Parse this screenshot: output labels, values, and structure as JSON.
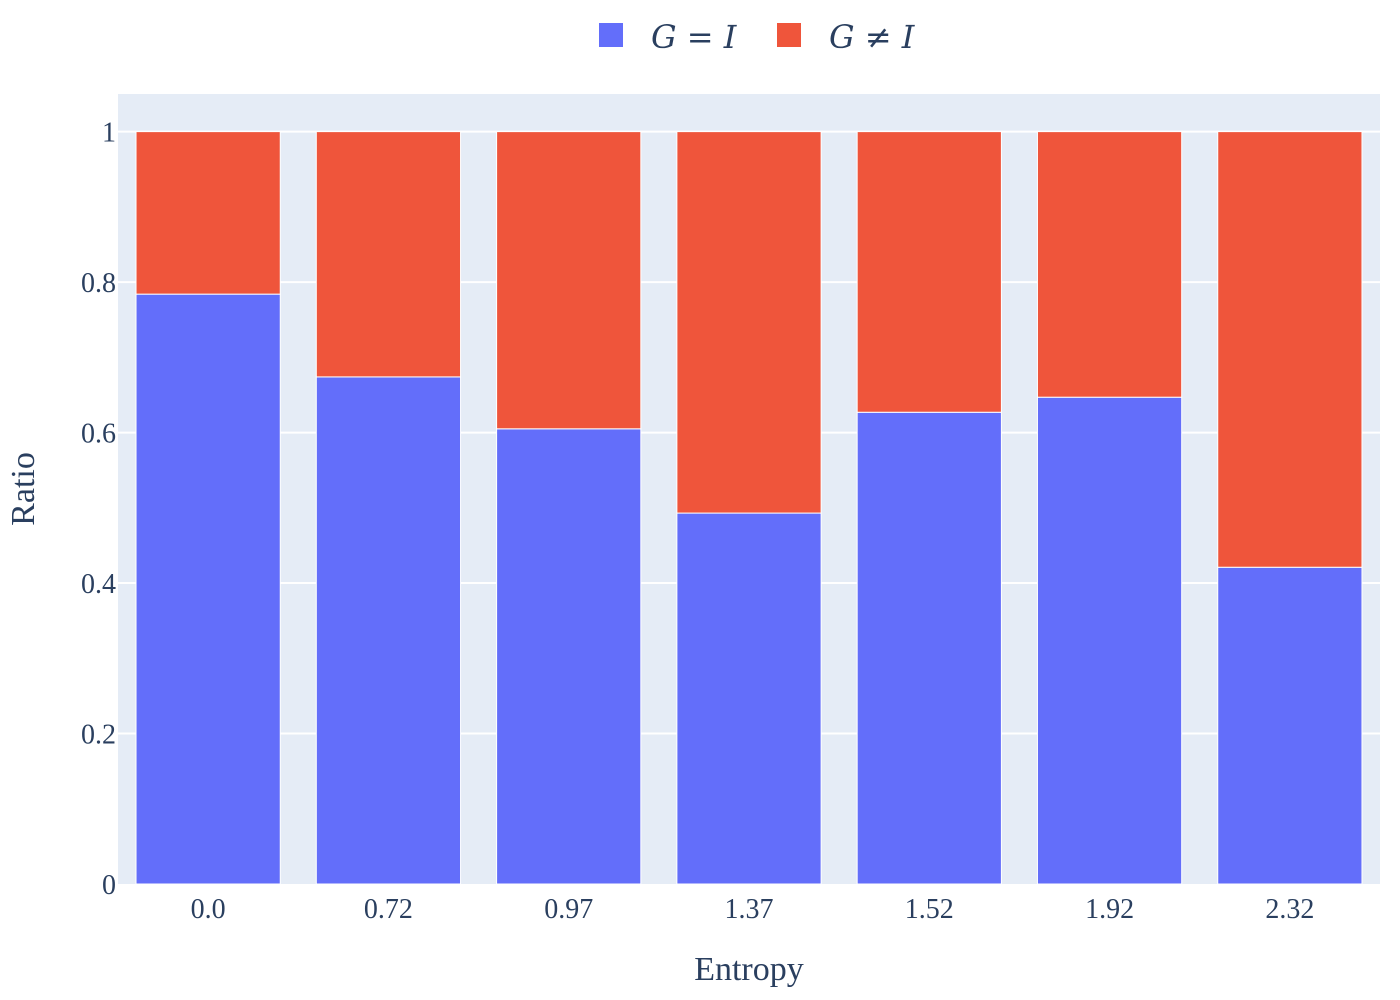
{
  "chart_data": {
    "type": "bar",
    "stacked": true,
    "categories": [
      "0.0",
      "0.72",
      "0.97",
      "1.37",
      "1.52",
      "1.92",
      "2.32"
    ],
    "series": [
      {
        "name": "G = I",
        "values": [
          0.784,
          0.674,
          0.605,
          0.493,
          0.627,
          0.647,
          0.421
        ],
        "color": "#636efa"
      },
      {
        "name": "G ≠ I",
        "values": [
          0.216,
          0.326,
          0.395,
          0.507,
          0.373,
          0.353,
          0.579
        ],
        "color": "#ef553b"
      }
    ],
    "xlabel": "Entropy",
    "ylabel": "Ratio",
    "ylim": [
      0,
      1.05
    ],
    "yticks": [
      0,
      0.2,
      0.4,
      0.6,
      0.8,
      1
    ],
    "ytick_labels": [
      "0",
      "0.2",
      "0.4",
      "0.6",
      "0.8",
      "1"
    ],
    "grid": true,
    "legend_position": "top-center",
    "plot_background": "#e5ecf6"
  }
}
